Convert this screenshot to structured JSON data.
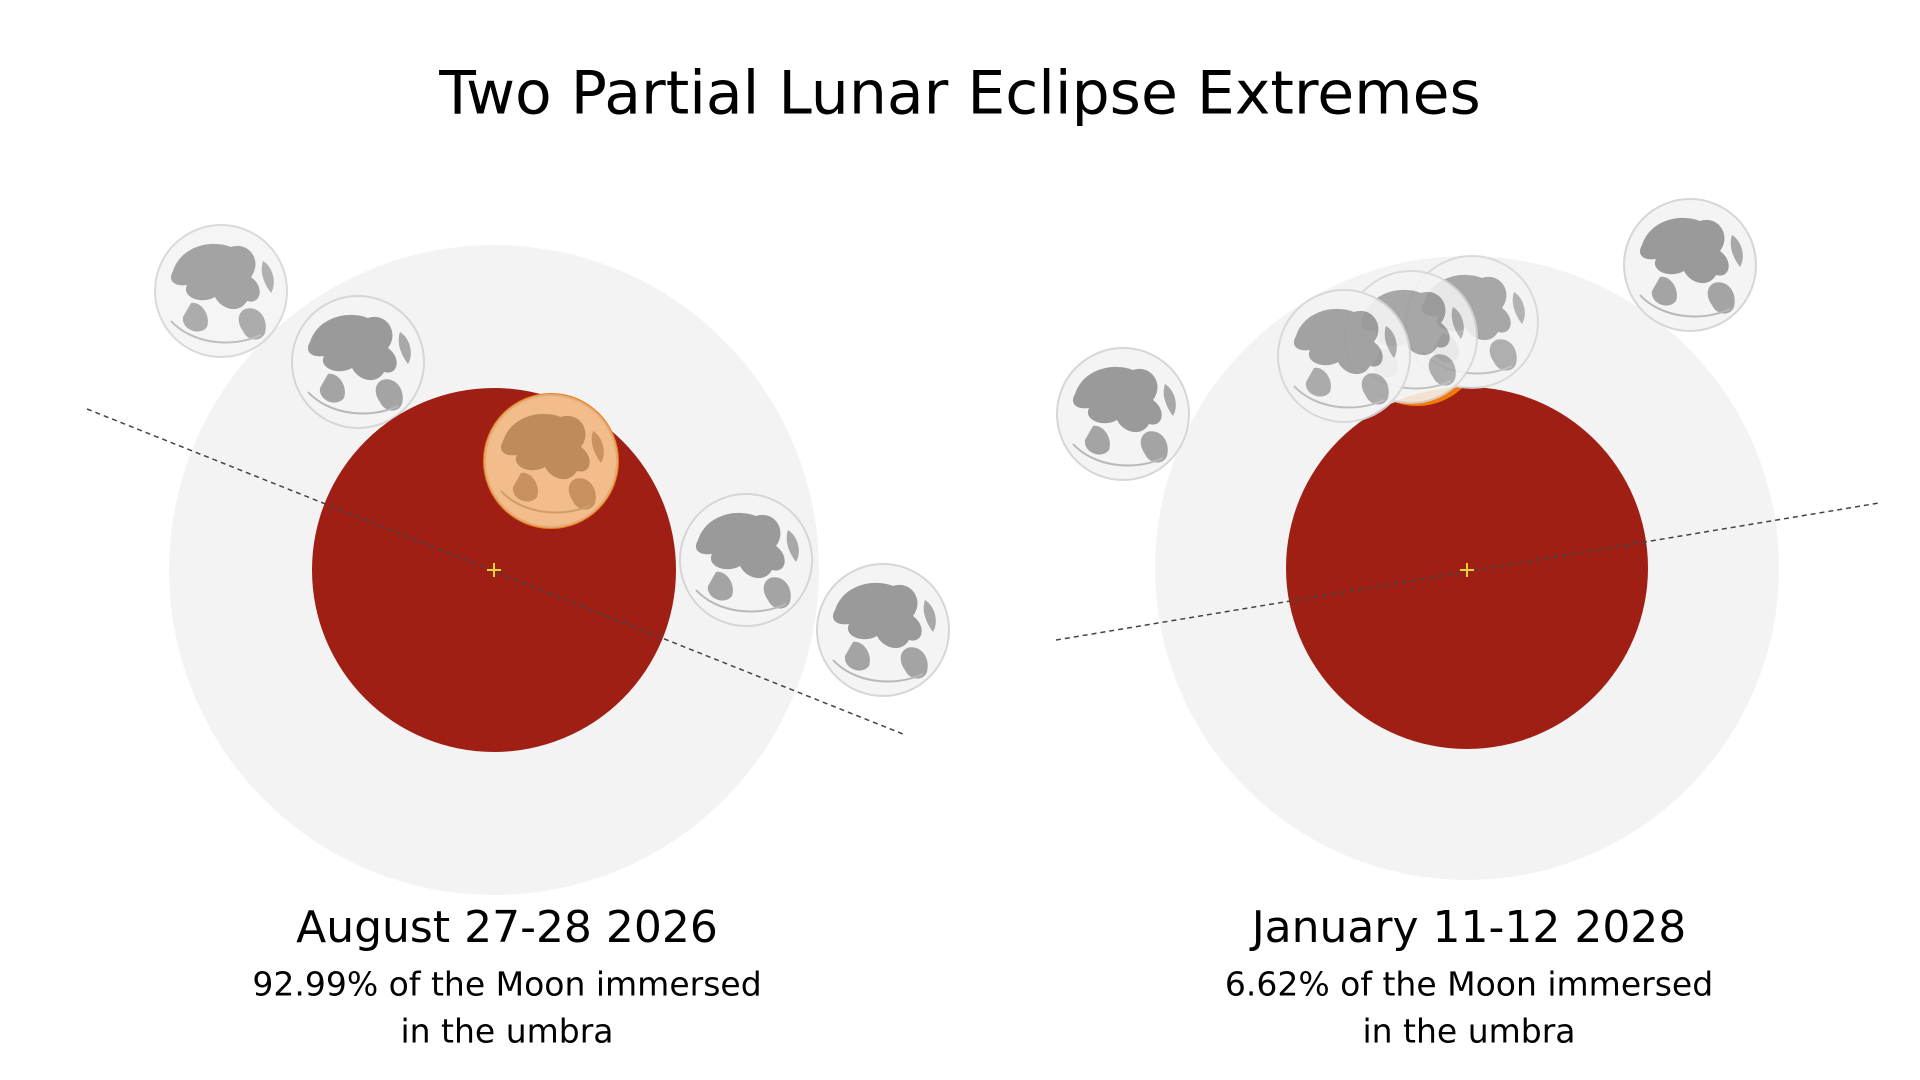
{
  "header": {
    "title": "Two Partial Lunar Eclipse Extremes"
  },
  "panels": [
    {
      "date": "August 27-28 2026",
      "caption": [
        "92.99% of the Moon immersed",
        "in the umbra"
      ]
    },
    {
      "date": "January 11-12 2028",
      "caption": [
        "6.62% of the Moon immersed",
        "in the umbra"
      ]
    }
  ]
}
